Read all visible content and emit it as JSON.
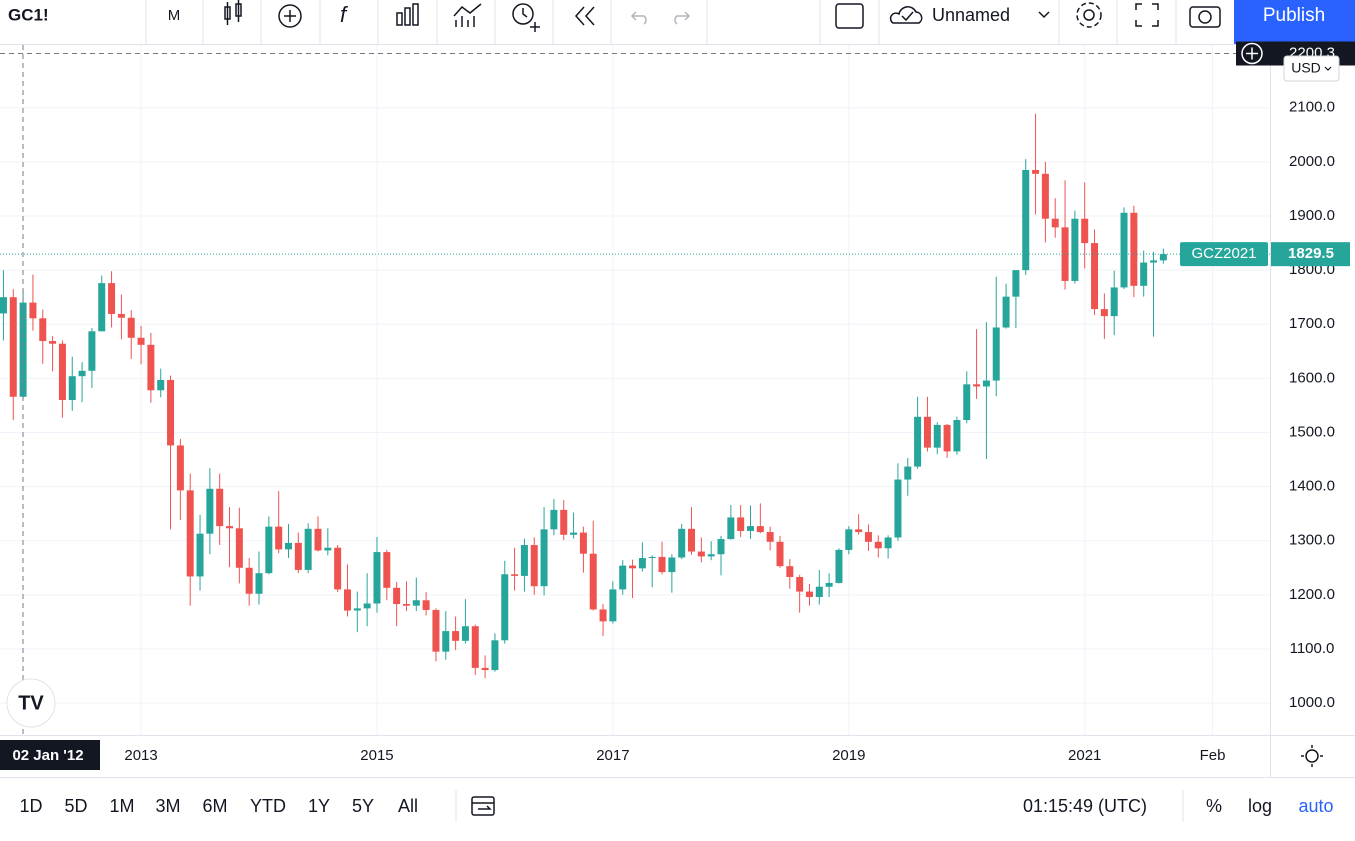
{
  "toolbar": {
    "symbol": "GC1!",
    "interval": "M",
    "layout_name": "Unnamed",
    "publish": "Publish"
  },
  "currency": "USD",
  "chart_data": {
    "type": "candlestick",
    "up_color": "#26a69a",
    "down_color": "#ef5350",
    "grid": true,
    "last_price_label": "GCZ2021",
    "last_price": 1829.5,
    "crosshair_price": 2200.3,
    "crosshair_date": "02 Jan '12",
    "xlim": [
      -0.35,
      128.85
    ],
    "xticks": [
      {
        "value": 14,
        "label": "2013"
      },
      {
        "value": 38,
        "label": "2015"
      },
      {
        "value": 62,
        "label": "2017"
      },
      {
        "value": 86,
        "label": "2019"
      },
      {
        "value": 110,
        "label": "2021"
      },
      {
        "value": 123,
        "label": "Feb"
      }
    ],
    "ylim": [
      941,
      2216
    ],
    "yticks": [
      {
        "value": 1000,
        "label": "1000.0"
      },
      {
        "value": 1100,
        "label": "1100.0"
      },
      {
        "value": 1200,
        "label": "1200.0"
      },
      {
        "value": 1300,
        "label": "1300.0"
      },
      {
        "value": 1400,
        "label": "1400.0"
      },
      {
        "value": 1500,
        "label": "1500.0"
      },
      {
        "value": 1600,
        "label": "1600.0"
      },
      {
        "value": 1700,
        "label": "1700.0"
      },
      {
        "value": 1800,
        "label": "1800.0"
      },
      {
        "value": 1900,
        "label": "1900.0"
      },
      {
        "value": 2000,
        "label": "2000.0"
      },
      {
        "value": 2100,
        "label": "2100.0"
      }
    ],
    "open": [
      1720,
      1750,
      1566,
      1740,
      1711,
      1669,
      1664,
      1560,
      1604,
      1614,
      1687,
      1776,
      1719,
      1712,
      1675,
      1662,
      1578,
      1597,
      1476,
      1393,
      1234,
      1313,
      1396,
      1327,
      1323,
      1250,
      1202,
      1240,
      1326,
      1284,
      1296,
      1246,
      1322,
      1282,
      1287,
      1210,
      1171,
      1175,
      1184,
      1279,
      1213,
      1183,
      1180,
      1190,
      1172,
      1095,
      1133,
      1115,
      1142,
      1065,
      1061,
      1116,
      1238,
      1235,
      1292,
      1216,
      1321,
      1357,
      1311,
      1315,
      1276,
      1173,
      1151,
      1210,
      1254,
      1249,
      1268,
      1270,
      1242,
      1269,
      1322,
      1280,
      1271,
      1275,
      1303,
      1343,
      1318,
      1327,
      1316,
      1298,
      1253,
      1233,
      1206,
      1196,
      1215,
      1222,
      1283,
      1321,
      1316,
      1298,
      1286,
      1306,
      1413,
      1437,
      1529,
      1472,
      1514,
      1465,
      1523,
      1589,
      1585,
      1596,
      1694,
      1751,
      1800,
      1985,
      1978,
      1895,
      1879,
      1780,
      1895,
      1850,
      1728,
      1715,
      1768,
      1906,
      1771,
      1814,
      1818
    ],
    "high": [
      1800,
      1765,
      1764,
      1792,
      1727,
      1678,
      1670,
      1640,
      1630,
      1693,
      1790,
      1798,
      1755,
      1726,
      1697,
      1684,
      1618,
      1605,
      1488,
      1424,
      1348,
      1434,
      1424,
      1362,
      1361,
      1268,
      1280,
      1345,
      1392,
      1331,
      1315,
      1332,
      1345,
      1323,
      1292,
      1256,
      1206,
      1240,
      1307,
      1283,
      1224,
      1225,
      1232,
      1205,
      1175,
      1170,
      1160,
      1192,
      1145,
      1088,
      1129,
      1263,
      1287,
      1304,
      1306,
      1362,
      1377,
      1375,
      1352,
      1326,
      1337,
      1183,
      1225,
      1264,
      1265,
      1297,
      1273,
      1298,
      1275,
      1331,
      1362,
      1306,
      1299,
      1309,
      1366,
      1366,
      1365,
      1369,
      1326,
      1309,
      1266,
      1237,
      1220,
      1246,
      1240,
      1286,
      1327,
      1349,
      1330,
      1310,
      1310,
      1443,
      1453,
      1566,
      1566,
      1519,
      1516,
      1529,
      1613,
      1691,
      1704,
      1788,
      1775,
      1800,
      2005,
      2089,
      2000,
      1933,
      1966,
      1910,
      1962,
      1875,
      1757,
      1799,
      1916,
      1919,
      1836,
      1834,
      1840
    ],
    "low": [
      1670,
      1523,
      1562,
      1688,
      1627,
      1613,
      1527,
      1540,
      1556,
      1582,
      1687,
      1694,
      1672,
      1636,
      1626,
      1555,
      1565,
      1321,
      1338,
      1180,
      1208,
      1275,
      1292,
      1251,
      1221,
      1180,
      1182,
      1238,
      1277,
      1268,
      1240,
      1240,
      1280,
      1273,
      1205,
      1160,
      1131,
      1142,
      1167,
      1190,
      1142,
      1170,
      1170,
      1162,
      1077,
      1080,
      1098,
      1110,
      1052,
      1046,
      1058,
      1110,
      1208,
      1206,
      1200,
      1199,
      1310,
      1301,
      1304,
      1241,
      1171,
      1124,
      1147,
      1200,
      1194,
      1243,
      1214,
      1238,
      1204,
      1266,
      1274,
      1260,
      1264,
      1236,
      1302,
      1307,
      1303,
      1314,
      1282,
      1250,
      1211,
      1167,
      1180,
      1182,
      1196,
      1221,
      1275,
      1311,
      1281,
      1269,
      1267,
      1300,
      1383,
      1433,
      1465,
      1460,
      1453,
      1459,
      1517,
      1562,
      1451,
      1567,
      1692,
      1693,
      1791,
      1903,
      1851,
      1860,
      1764,
      1775,
      1803,
      1717,
      1673,
      1680,
      1765,
      1750,
      1751,
      1677,
      1812
    ],
    "close": [
      1750,
      1566,
      1740,
      1711,
      1669,
      1664,
      1560,
      1604,
      1614,
      1687,
      1776,
      1719,
      1712,
      1675,
      1662,
      1578,
      1597,
      1476,
      1393,
      1234,
      1313,
      1396,
      1327,
      1323,
      1250,
      1202,
      1240,
      1326,
      1284,
      1296,
      1246,
      1322,
      1282,
      1287,
      1210,
      1171,
      1175,
      1184,
      1279,
      1213,
      1183,
      1180,
      1190,
      1172,
      1095,
      1133,
      1115,
      1142,
      1065,
      1061,
      1116,
      1238,
      1235,
      1292,
      1216,
      1321,
      1357,
      1311,
      1315,
      1276,
      1173,
      1151,
      1210,
      1254,
      1249,
      1268,
      1270,
      1242,
      1269,
      1322,
      1280,
      1271,
      1275,
      1303,
      1343,
      1318,
      1327,
      1316,
      1298,
      1253,
      1233,
      1206,
      1196,
      1215,
      1222,
      1283,
      1321,
      1316,
      1298,
      1286,
      1306,
      1413,
      1437,
      1529,
      1472,
      1514,
      1465,
      1523,
      1589,
      1585,
      1596,
      1694,
      1751,
      1800,
      1985,
      1978,
      1895,
      1879,
      1780,
      1895,
      1850,
      1728,
      1715,
      1768,
      1906,
      1771,
      1814,
      1818,
      1829.5
    ]
  },
  "bottom_bar": {
    "ranges": [
      "1D",
      "5D",
      "1M",
      "3M",
      "6M",
      "YTD",
      "1Y",
      "5Y",
      "All"
    ],
    "time": "01:15:49 (UTC)",
    "percent": "%",
    "log": "log",
    "auto": "auto"
  }
}
